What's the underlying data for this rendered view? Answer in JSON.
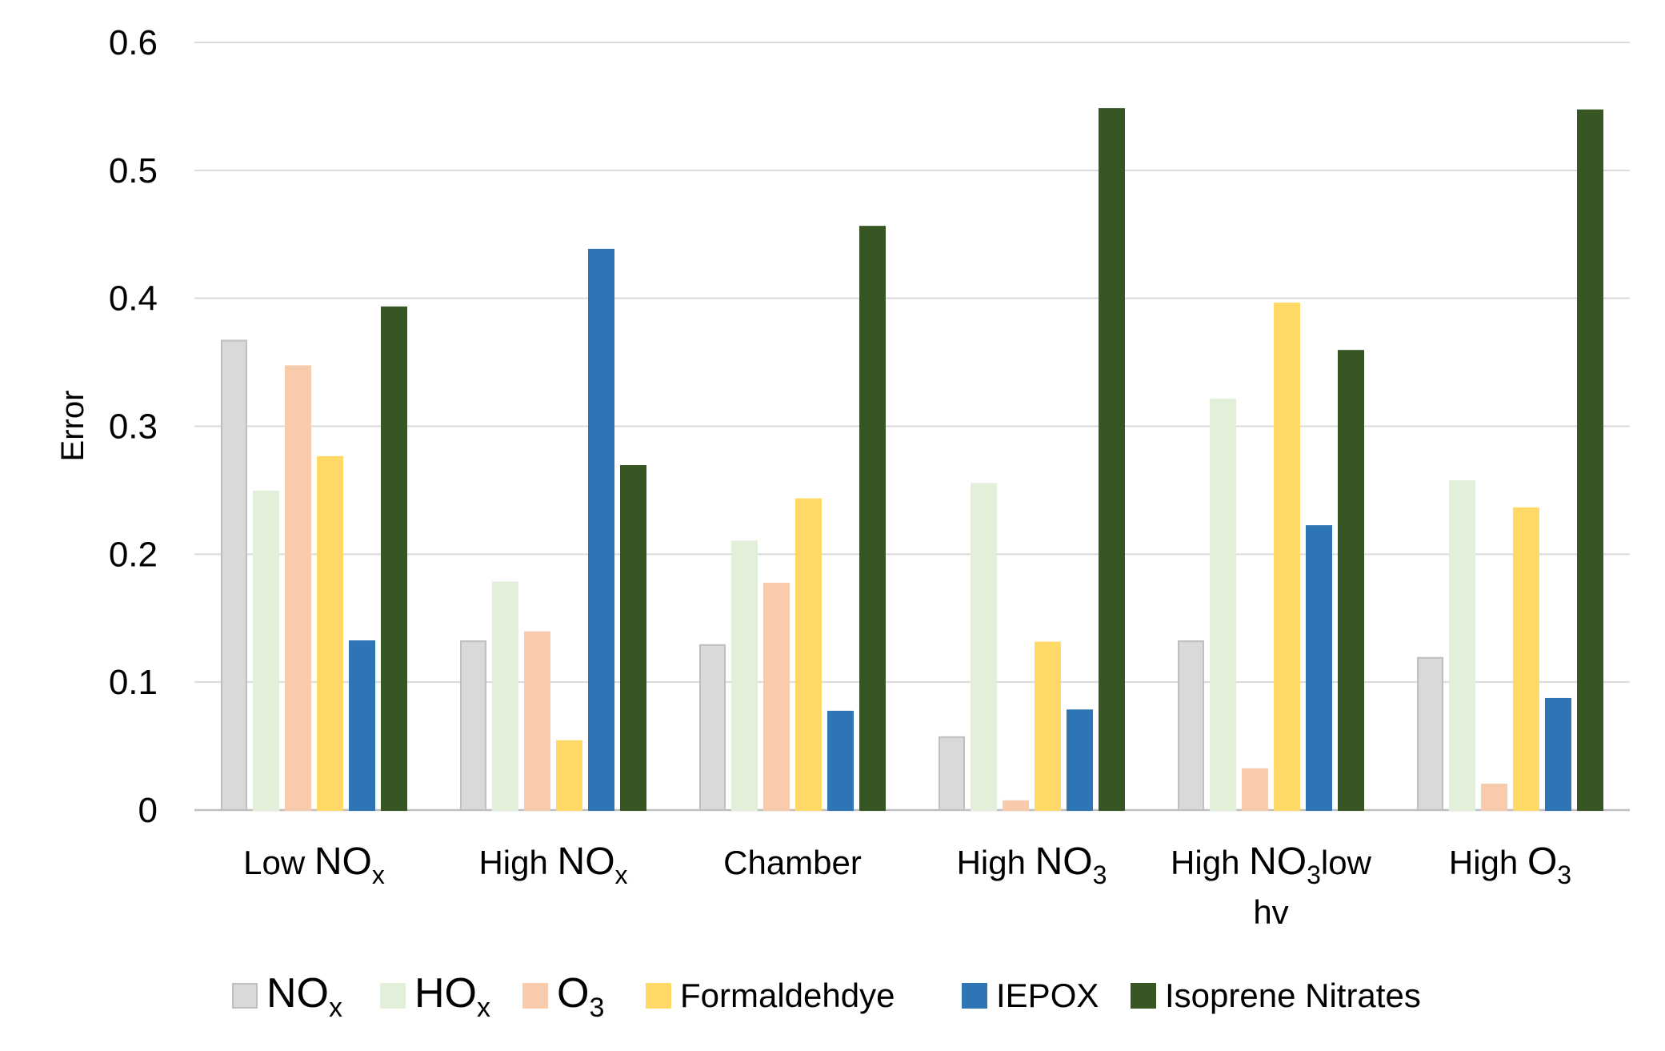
{
  "chart_data": {
    "type": "bar",
    "title": "",
    "xlabel": "",
    "ylabel": "Error",
    "ylim": [
      0,
      0.6
    ],
    "yticks": [
      "0",
      "0.1",
      "0.2",
      "0.3",
      "0.4",
      "0.5",
      "0.6"
    ],
    "grid": "horizontal",
    "legend_position": "bottom",
    "categories": [
      {
        "id": "low-nox",
        "text": "Low NOx",
        "parts": [
          {
            "t": "Low ",
            "s": "n"
          },
          {
            "t": "NO",
            "s": "b"
          },
          {
            "t": "x",
            "s": "sub"
          }
        ]
      },
      {
        "id": "high-nox",
        "text": "High NOx",
        "parts": [
          {
            "t": "High ",
            "s": "n"
          },
          {
            "t": "NO",
            "s": "b"
          },
          {
            "t": "x",
            "s": "sub"
          }
        ]
      },
      {
        "id": "chamber",
        "text": "Chamber",
        "parts": [
          {
            "t": "Chamber",
            "s": "n"
          }
        ]
      },
      {
        "id": "high-no3",
        "text": "High NO3",
        "parts": [
          {
            "t": "High ",
            "s": "n"
          },
          {
            "t": "NO",
            "s": "b"
          },
          {
            "t": "3",
            "s": "sub"
          }
        ]
      },
      {
        "id": "high-no3-low-hv",
        "text": "High NO3low hv",
        "parts": [
          {
            "t": "High ",
            "s": "n"
          },
          {
            "t": "NO",
            "s": "b"
          },
          {
            "t": "3",
            "s": "sub"
          },
          {
            "t": "low",
            "s": "n"
          }
        ],
        "line2": "hv"
      },
      {
        "id": "high-o3",
        "text": "High O3",
        "parts": [
          {
            "t": "High ",
            "s": "n"
          },
          {
            "t": "O",
            "s": "b"
          },
          {
            "t": "3",
            "s": "sub"
          }
        ]
      }
    ],
    "series": [
      {
        "name": "NOx",
        "id": "nox",
        "color": "#d9d9d9",
        "border": "#bfbfbf",
        "parts": [
          {
            "t": "NO",
            "s": "b"
          },
          {
            "t": "x",
            "s": "sub"
          }
        ],
        "values": [
          0.367,
          0.132,
          0.129,
          0.057,
          0.132,
          0.119
        ]
      },
      {
        "name": "HOx",
        "id": "hox",
        "color": "#e2efd9",
        "border": "#e2efd9",
        "parts": [
          {
            "t": "HO",
            "s": "b"
          },
          {
            "t": "x",
            "s": "sub"
          }
        ],
        "values": [
          0.249,
          0.178,
          0.21,
          0.255,
          0.321,
          0.257
        ]
      },
      {
        "name": "O3",
        "id": "o3",
        "color": "#f8cbad",
        "border": "#f8cbad",
        "parts": [
          {
            "t": "O",
            "s": "b"
          },
          {
            "t": "3",
            "s": "sub"
          }
        ],
        "values": [
          0.347,
          0.139,
          0.177,
          0.007,
          0.032,
          0.02
        ]
      },
      {
        "name": "Formaldehdye",
        "id": "formaldehyde",
        "color": "#ffd966",
        "border": "#ffd966",
        "parts": [
          {
            "t": "Formaldehdye",
            "s": "n"
          }
        ],
        "values": [
          0.276,
          0.054,
          0.243,
          0.131,
          0.396,
          0.236
        ]
      },
      {
        "name": "IEPOX",
        "id": "iepox",
        "color": "#2e75b6",
        "border": "#2e75b6",
        "parts": [
          {
            "t": "IEPOX",
            "s": "n"
          }
        ],
        "values": [
          0.132,
          0.438,
          0.077,
          0.078,
          0.222,
          0.087
        ]
      },
      {
        "name": "Isoprene Nitrates",
        "id": "isoprene-nitrates",
        "color": "#375623",
        "border": "#375623",
        "parts": [
          {
            "t": "Isoprene Nitrates",
            "s": "n"
          }
        ],
        "values": [
          0.393,
          0.269,
          0.456,
          0.548,
          0.359,
          0.547
        ]
      }
    ]
  }
}
